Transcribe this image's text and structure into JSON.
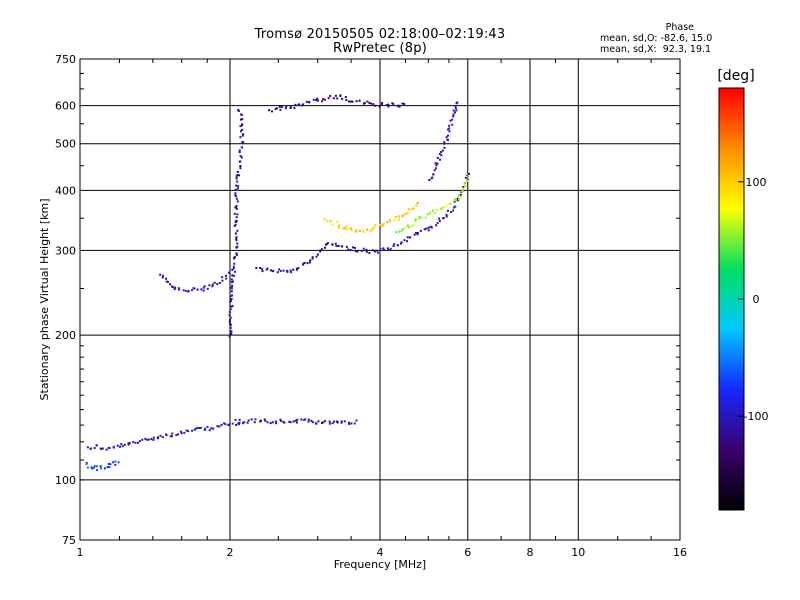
{
  "header": {
    "title_line1": "Tromsø 20150505 02:18:00–02:19:43",
    "title_line2": "RwPretec (8p)",
    "phase_title": "Phase",
    "phase_o": "mean, sd,O: -82.6, 15.0",
    "phase_x": "mean, sd,X:  92.3, 19.1"
  },
  "colorbar": {
    "label": "[deg]",
    "ticks": [
      100,
      0,
      -100
    ],
    "range": [
      -180,
      180
    ],
    "colors": [
      "#000000",
      "#3c006e",
      "#1428ff",
      "#00c8ff",
      "#00e060",
      "#ffff00",
      "#ff8c00",
      "#ff0000"
    ]
  },
  "chart_data": {
    "type": "scatter",
    "xlabel": "Frequency [MHz]",
    "ylabel": "Stationary phase Virtual Height [km]",
    "xscale": "log",
    "yscale": "log",
    "xlim": [
      1,
      16
    ],
    "ylim": [
      75,
      750
    ],
    "xticks": [
      1,
      2,
      4,
      6,
      8,
      10,
      16
    ],
    "yticks": [
      75,
      100,
      200,
      300,
      400,
      500,
      600,
      750
    ],
    "grid": true,
    "traces": [
      {
        "name": "",
        "phase": -100,
        "points": [
          [
            1.03,
            117
          ],
          [
            1.08,
            118
          ],
          [
            1.12,
            116
          ],
          [
            1.18,
            118
          ],
          [
            1.25,
            119
          ],
          [
            1.35,
            122
          ],
          [
            1.45,
            124
          ],
          [
            1.55,
            125
          ],
          [
            1.65,
            127
          ],
          [
            1.75,
            128
          ],
          [
            1.85,
            129
          ],
          [
            1.95,
            131
          ],
          [
            2.1,
            131
          ]
        ]
      },
      {
        "name": "",
        "phase": -70,
        "points": [
          [
            1.02,
            108
          ],
          [
            1.05,
            107
          ],
          [
            1.08,
            106
          ],
          [
            1.12,
            107
          ],
          [
            1.15,
            108
          ],
          [
            1.2,
            110
          ]
        ]
      },
      {
        "name": "",
        "phase": -100,
        "points": [
          [
            1.45,
            270
          ],
          [
            1.5,
            256
          ],
          [
            1.55,
            250
          ],
          [
            1.65,
            249
          ],
          [
            1.75,
            250
          ],
          [
            1.85,
            255
          ],
          [
            1.95,
            265
          ],
          [
            2.0,
            272
          ]
        ]
      },
      {
        "name": "",
        "phase": -110,
        "points": [
          [
            2.25,
            275
          ],
          [
            2.4,
            274
          ],
          [
            2.55,
            273
          ],
          [
            2.7,
            275
          ],
          [
            2.85,
            285
          ],
          [
            3.0,
            298
          ],
          [
            3.1,
            308
          ],
          [
            3.2,
            312
          ],
          [
            3.4,
            305
          ],
          [
            3.6,
            302
          ],
          [
            3.8,
            300
          ],
          [
            4.0,
            301
          ],
          [
            4.3,
            310
          ],
          [
            4.6,
            322
          ],
          [
            5.0,
            335
          ],
          [
            5.4,
            355
          ],
          [
            5.7,
            380
          ],
          [
            5.9,
            410
          ],
          [
            6.0,
            440
          ]
        ]
      },
      {
        "name": "",
        "phase": 60,
        "points": [
          [
            4.3,
            330
          ],
          [
            4.6,
            340
          ],
          [
            4.9,
            355
          ],
          [
            5.2,
            365
          ],
          [
            5.5,
            375
          ],
          [
            5.75,
            390
          ],
          [
            5.9,
            410
          ],
          [
            6.0,
            435
          ]
        ]
      },
      {
        "name": "",
        "phase": 100,
        "points": [
          [
            3.1,
            350
          ],
          [
            3.4,
            335
          ],
          [
            3.7,
            330
          ],
          [
            4.0,
            340
          ],
          [
            4.4,
            355
          ],
          [
            4.8,
            380
          ]
        ]
      },
      {
        "name": "",
        "phase": -100,
        "points": [
          [
            5.0,
            420
          ],
          [
            5.2,
            460
          ],
          [
            5.4,
            510
          ],
          [
            5.55,
            560
          ],
          [
            5.65,
            600
          ],
          [
            5.7,
            620
          ]
        ]
      },
      {
        "name": "",
        "phase": -120,
        "points": [
          [
            2.4,
            590
          ],
          [
            2.7,
            600
          ],
          [
            3.0,
            620
          ],
          [
            3.3,
            630
          ],
          [
            3.6,
            612
          ],
          [
            4.0,
            605
          ],
          [
            4.5,
            605
          ]
        ]
      },
      {
        "name": "",
        "phase": -110,
        "points": [
          [
            2.0,
            200
          ],
          [
            2.0,
            250
          ],
          [
            2.05,
            300
          ],
          [
            2.05,
            350
          ],
          [
            2.05,
            400
          ],
          [
            2.08,
            450
          ],
          [
            2.1,
            500
          ],
          [
            2.1,
            550
          ],
          [
            2.08,
            600
          ]
        ]
      },
      {
        "name": "",
        "phase": -110,
        "points": [
          [
            2.05,
            133
          ],
          [
            2.3,
            133
          ],
          [
            2.6,
            133
          ],
          [
            2.9,
            133
          ],
          [
            3.2,
            132
          ],
          [
            3.6,
            133
          ]
        ]
      }
    ]
  }
}
